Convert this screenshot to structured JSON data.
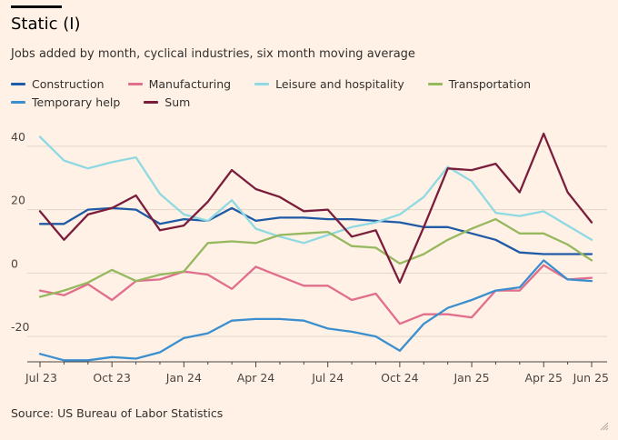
{
  "title": "Static (I)",
  "subtitle": "Jobs added by month, cyclical industries, six month moving average",
  "source": "Source: US Bureau of Labor Statistics",
  "chart_data": {
    "type": "line",
    "title": "Static (I)",
    "subtitle": "Jobs added by month, cyclical industries, six month moving average",
    "xlabel": "",
    "ylabel": "",
    "ylim": [
      -28,
      46
    ],
    "yticks": [
      40,
      20,
      0,
      -20
    ],
    "xtick_labels": [
      "Jul 23",
      "Oct 23",
      "Jan 24",
      "Apr 24",
      "Jul 24",
      "Oct 24",
      "Jan 25",
      "Apr 25",
      "Jun 25"
    ],
    "xtick_index": [
      0,
      3,
      6,
      9,
      12,
      15,
      18,
      21,
      23
    ],
    "x": [
      "Jul 23",
      "Aug 23",
      "Sep 23",
      "Oct 23",
      "Nov 23",
      "Dec 23",
      "Jan 24",
      "Feb 24",
      "Mar 24",
      "Apr 24",
      "May 24",
      "Jun 24",
      "Jul 24",
      "Aug 24",
      "Sep 24",
      "Oct 24",
      "Nov 24",
      "Dec 24",
      "Jan 25",
      "Feb 25",
      "Mar 25",
      "Apr 25",
      "May 25",
      "Jun 25"
    ],
    "grid": "horizontal",
    "legend_position": "top",
    "series": [
      {
        "name": "Construction",
        "color": "#1f5aa6",
        "values": [
          15.5,
          15.5,
          20,
          20.5,
          20,
          15.5,
          17,
          16.5,
          20.5,
          16.5,
          17.5,
          17.5,
          17,
          17,
          16.5,
          16,
          14.5,
          14.5,
          12.5,
          10.5,
          6.5,
          6,
          6,
          6
        ]
      },
      {
        "name": "Manufacturing",
        "color": "#e06e8c",
        "values": [
          -5.5,
          -7,
          -3.5,
          -8.5,
          -2.5,
          -2,
          0.5,
          -0.5,
          -5,
          2,
          -1,
          -4,
          -4,
          -8.5,
          -6.5,
          -16,
          -13,
          -13,
          -14,
          -5.5,
          -5.5,
          2.5,
          -2,
          -1.5
        ]
      },
      {
        "name": "Leisure and hospitality",
        "color": "#8ed9e2",
        "values": [
          43,
          35.5,
          33,
          35,
          36.5,
          25,
          18.5,
          16.5,
          23,
          14,
          11.5,
          9.5,
          12,
          14.5,
          16,
          18.5,
          24,
          33.5,
          29,
          19,
          18,
          19.5,
          15,
          10.5
        ]
      },
      {
        "name": "Transportation",
        "color": "#96b85e",
        "values": [
          -7.5,
          -5.5,
          -3,
          1,
          -2.5,
          -0.5,
          0.5,
          9.5,
          10,
          9.5,
          12,
          12.5,
          13,
          8.5,
          8,
          3,
          6,
          10.5,
          14,
          17,
          12.5,
          12.5,
          9,
          4
        ]
      },
      {
        "name": "Temporary help",
        "color": "#3b8fcf",
        "values": [
          -25.5,
          -27.5,
          -27.5,
          -26.5,
          -27,
          -25,
          -20.5,
          -19,
          -15,
          -14.5,
          -14.5,
          -15,
          -17.5,
          -18.5,
          -20,
          -24.5,
          -16,
          -11,
          -8.5,
          -5.5,
          -4.5,
          4,
          -2,
          -2.5
        ]
      },
      {
        "name": "Sum",
        "color": "#7a1d3c",
        "values": [
          19.5,
          10.5,
          18.5,
          20.5,
          24.5,
          13.5,
          15,
          22.5,
          32.5,
          26.5,
          24,
          19.5,
          20,
          11.5,
          13.5,
          -3,
          14.5,
          33,
          32.5,
          34.5,
          25.5,
          44,
          25.5,
          16
        ]
      }
    ]
  }
}
